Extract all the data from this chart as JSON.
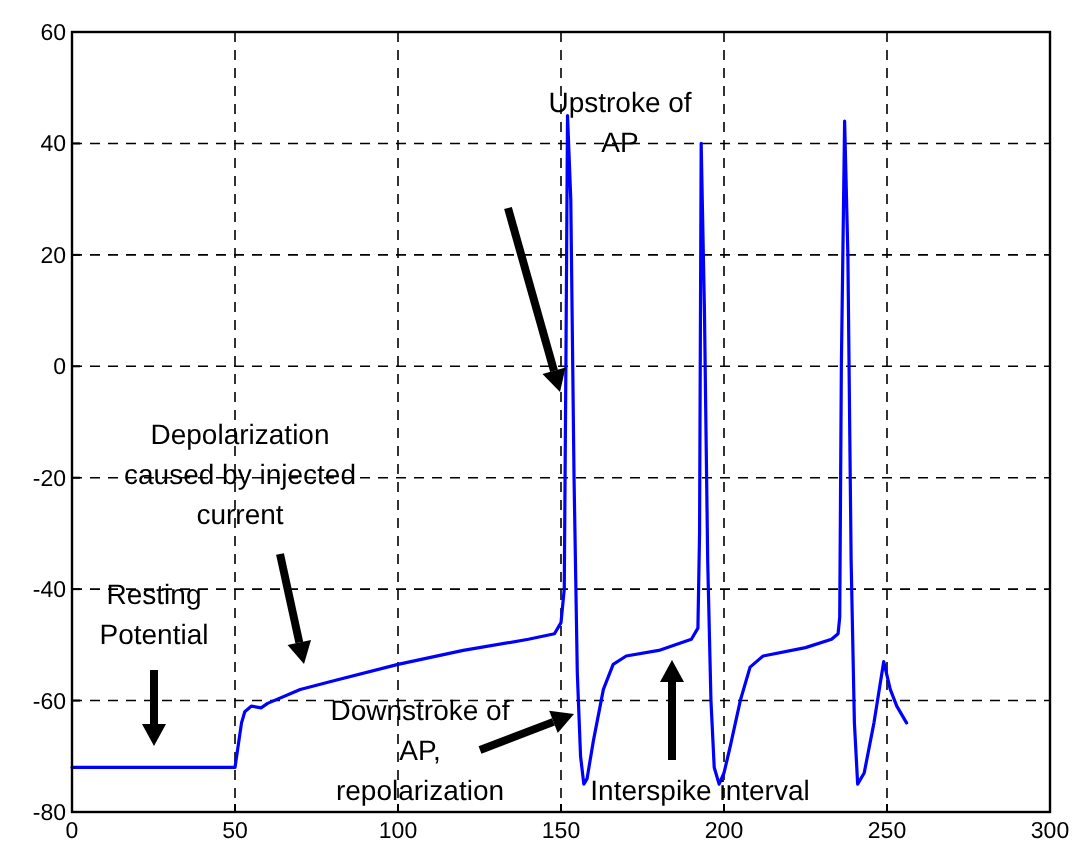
{
  "chart_data": {
    "type": "line",
    "xlim": [
      0,
      300
    ],
    "ylim": [
      -80,
      60
    ],
    "xticks": [
      0,
      50,
      100,
      150,
      200,
      250,
      300
    ],
    "yticks": [
      -80,
      -60,
      -40,
      -20,
      0,
      20,
      40,
      60
    ],
    "grid": true,
    "line_style": "dashed",
    "series": [
      {
        "color": "#0000ff",
        "line_style": "solid",
        "x": [
          0,
          3,
          50,
          51,
          52,
          53,
          55,
          58,
          60,
          70,
          80,
          100,
          120,
          140,
          148,
          150,
          151,
          151.5,
          152,
          153,
          154,
          155,
          156,
          157,
          158,
          160,
          163,
          166,
          170,
          180,
          190,
          192,
          192.5,
          193,
          194,
          195,
          196,
          197,
          198.5,
          200,
          202,
          205,
          208,
          212,
          225,
          233,
          235,
          235.5,
          236,
          237,
          238,
          239,
          240,
          241,
          243,
          246,
          249,
          251,
          253,
          256
        ],
        "values": [
          -72,
          -72,
          -72,
          -68,
          -64,
          -62,
          -61,
          -61.3,
          -60.5,
          -58,
          -56.5,
          -53.5,
          -51,
          -49,
          -48,
          -46,
          -40,
          0,
          45,
          30,
          -20,
          -55,
          -70,
          -75,
          -74,
          -67,
          -58,
          -53.5,
          -52,
          -51,
          -49,
          -47,
          -30,
          40,
          10,
          -35,
          -60,
          -72,
          -75,
          -73,
          -68,
          -60,
          -54,
          -52,
          -50.5,
          -49,
          -48,
          -45,
          0,
          44,
          20,
          -35,
          -64,
          -75,
          -73,
          -64,
          -53,
          -58,
          -61,
          -64
        ]
      }
    ],
    "annotations": [
      "Resting\nPotential",
      "Depolarization\ncaused by injected\ncurrent",
      "Upstroke of\nAP",
      "Downstroke of\nAP,\nrepolarization",
      "Interspike interval"
    ]
  }
}
